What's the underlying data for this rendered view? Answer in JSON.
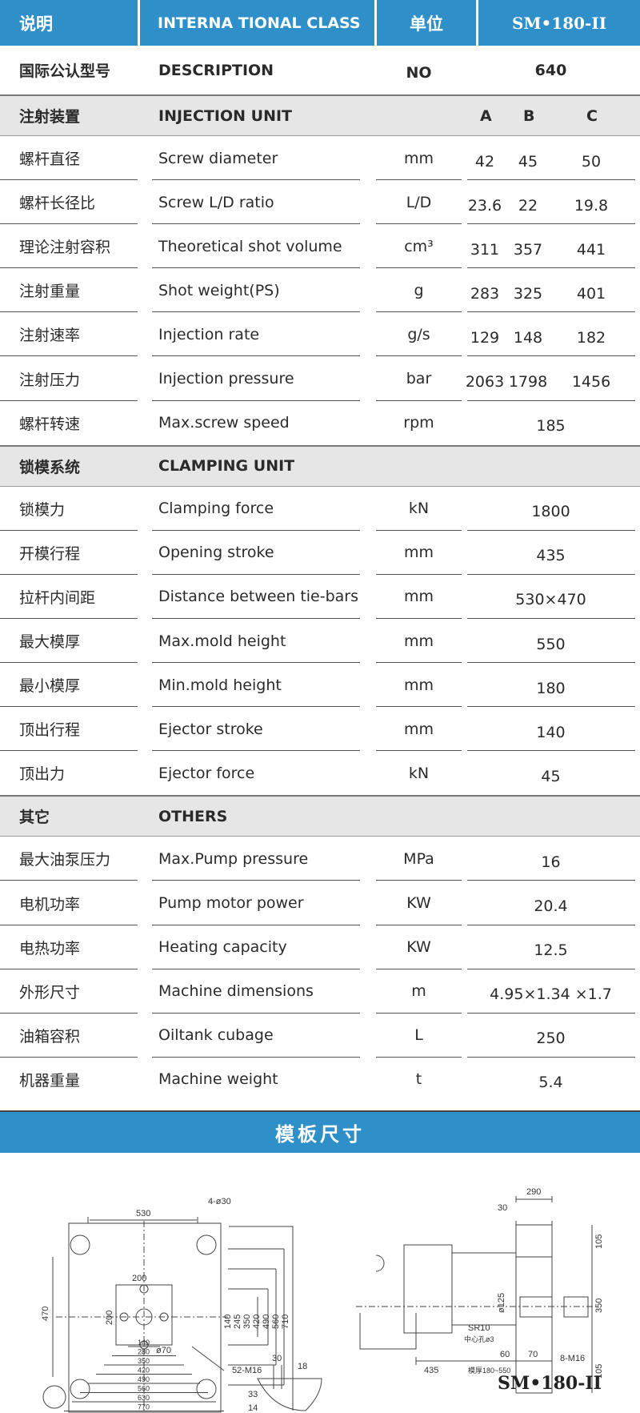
{
  "header": {
    "col1": "说明",
    "col2": "INTERNA TIONAL CLASS",
    "col3": "单位",
    "col4": "SM•180-II"
  },
  "description_row": {
    "cn": "国际公认型号",
    "en": "DESCRIPTION",
    "unit": "NO",
    "value": "640"
  },
  "injection": {
    "cn": "注射装置",
    "en": "INJECTION UNIT",
    "cols": [
      "A",
      "B",
      "C"
    ],
    "rows": [
      {
        "cn": "螺杆直径",
        "en": "Screw diameter",
        "unit": "mm",
        "values": [
          "42",
          "45",
          "50"
        ]
      },
      {
        "cn": "螺杆长径比",
        "en": "Screw L/D ratio",
        "unit": "L/D",
        "values": [
          "23.6",
          "22",
          "19.8"
        ]
      },
      {
        "cn": "理论注射容积",
        "en": "Theoretical shot volume",
        "unit": "cm³",
        "values": [
          "311",
          "357",
          "441"
        ]
      },
      {
        "cn": "注射重量",
        "en": "Shot weight(PS)",
        "unit": "g",
        "values": [
          "283",
          "325",
          "401"
        ]
      },
      {
        "cn": "注射速率",
        "en": "Injection rate",
        "unit": "g/s",
        "values": [
          "129",
          "148",
          "182"
        ]
      },
      {
        "cn": "注射压力",
        "en": "Injection pressure",
        "unit": "bar",
        "values": [
          "2063",
          "1798",
          "1456"
        ]
      },
      {
        "cn": "螺杆转速",
        "en": "Max.screw speed",
        "unit": "rpm",
        "value": "185"
      }
    ]
  },
  "clamping": {
    "cn": "锁模系统",
    "en": "CLAMPING UNIT",
    "rows": [
      {
        "cn": "锁模力",
        "en": "Clamping force",
        "unit": "kN",
        "value": "1800"
      },
      {
        "cn": "开模行程",
        "en": "Opening stroke",
        "unit": "mm",
        "value": "435"
      },
      {
        "cn": "拉杆内间距",
        "en": "Distance between tie-bars",
        "unit": "mm",
        "value": "530×470"
      },
      {
        "cn": "最大模厚",
        "en": "Max.mold height",
        "unit": "mm",
        "value": "550"
      },
      {
        "cn": "最小模厚",
        "en": "Min.mold height",
        "unit": "mm",
        "value": "180"
      },
      {
        "cn": "顶出行程",
        "en": "Ejector stroke",
        "unit": "mm",
        "value": "140"
      },
      {
        "cn": "顶出力",
        "en": "Ejector force",
        "unit": "kN",
        "value": "45"
      }
    ]
  },
  "others": {
    "cn": "其它",
    "en": "OTHERS",
    "rows": [
      {
        "cn": "最大油泵压力",
        "en": "Max.Pump pressure",
        "unit": "MPa",
        "value": "16"
      },
      {
        "cn": "电机功率",
        "en": "Pump motor power",
        "unit": "KW",
        "value": "20.4"
      },
      {
        "cn": "电热功率",
        "en": "Heating capacity",
        "unit": "KW",
        "value": "12.5"
      },
      {
        "cn": "外形尺寸",
        "en": "Machine dimensions",
        "unit": "m",
        "value": "4.95×1.34  ×1.7"
      },
      {
        "cn": "油箱容积",
        "en": "Oiltank cubage",
        "unit": "L",
        "value": "250"
      },
      {
        "cn": "机器重量",
        "en": "Machine weight",
        "unit": "t",
        "value": "5.4"
      }
    ]
  },
  "drawing": {
    "banner": "模板尺寸",
    "front_view": {
      "top_dim": "530",
      "hole_label": "4-ø30",
      "left_dim": "470",
      "center_dims": [
        "200",
        "200"
      ],
      "center_hole": "ø70",
      "right_dims": [
        "140",
        "245",
        "350",
        "420",
        "490",
        "560",
        "710"
      ],
      "bottom_dims": [
        "140",
        "280",
        "350",
        "420",
        "490",
        "560",
        "630",
        "770"
      ],
      "thread_label": "52-M16",
      "detail_dims": [
        "30",
        "18",
        "33",
        "14"
      ]
    },
    "side_view": {
      "dims": [
        "290",
        "30",
        "105",
        "350",
        "105",
        "ø125",
        "SR10",
        "中心孔ø3",
        "60",
        "70",
        "8-M16",
        "435",
        "模厚180~550"
      ]
    },
    "model": "SM•180-II"
  },
  "colors": {
    "header_blue": "#2f8fc9",
    "section_gray": "#e6e6e6"
  }
}
